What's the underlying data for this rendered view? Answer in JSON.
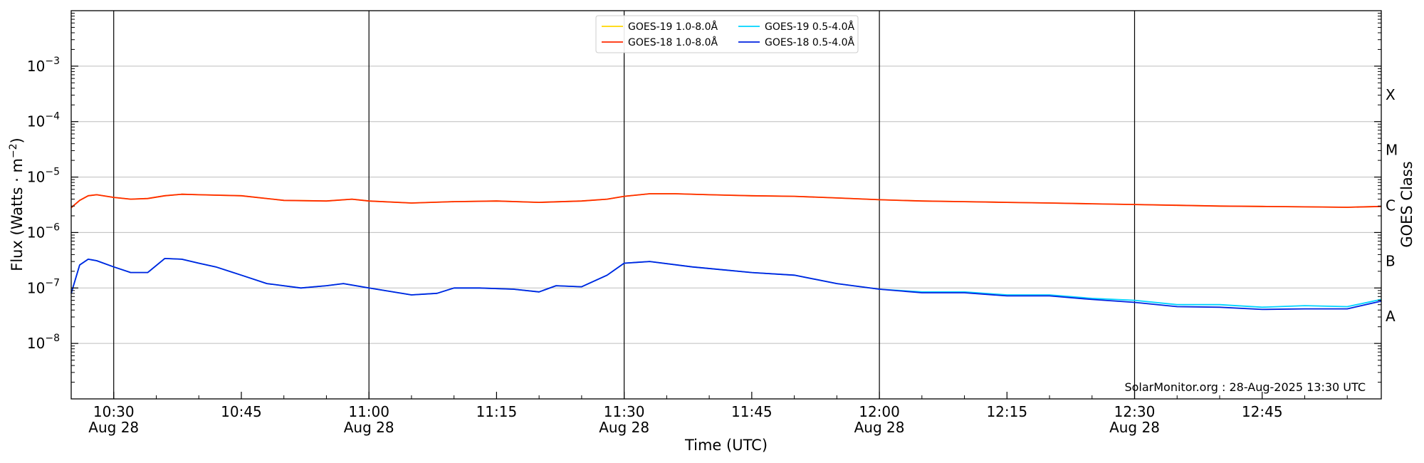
{
  "chart_data": {
    "type": "line",
    "title": "",
    "xlabel": "Time (UTC)",
    "ylabel": "Flux (Watts · m",
    "ylabel_sup": "−2",
    "ylabel_close": ")",
    "y2label": "GOES Class",
    "yscale": "log",
    "ylim": [
      1e-09,
      0.01
    ],
    "xlim": [
      "10:25:00",
      "12:59:00"
    ],
    "x_ticks": [
      {
        "time": "10:30",
        "line1": "10:30",
        "line2": "Aug 28"
      },
      {
        "time": "10:45",
        "line1": "10:45",
        "line2": ""
      },
      {
        "time": "11:00",
        "line1": "11:00",
        "line2": "Aug 28"
      },
      {
        "time": "11:15",
        "line1": "11:15",
        "line2": ""
      },
      {
        "time": "11:30",
        "line1": "11:30",
        "line2": "Aug 28"
      },
      {
        "time": "11:45",
        "line1": "11:45",
        "line2": ""
      },
      {
        "time": "12:00",
        "line1": "12:00",
        "line2": "Aug 28"
      },
      {
        "time": "12:15",
        "line1": "12:15",
        "line2": ""
      },
      {
        "time": "12:30",
        "line1": "12:30",
        "line2": "Aug 28"
      },
      {
        "time": "12:45",
        "line1": "12:45",
        "line2": ""
      }
    ],
    "y_ticks": [
      {
        "value": 1e-08,
        "base": "10",
        "exp": "−8"
      },
      {
        "value": 1e-07,
        "base": "10",
        "exp": "−7"
      },
      {
        "value": 1e-06,
        "base": "10",
        "exp": "−6"
      },
      {
        "value": 1e-05,
        "base": "10",
        "exp": "−5"
      },
      {
        "value": 0.0001,
        "base": "10",
        "exp": "−4"
      },
      {
        "value": 0.001,
        "base": "10",
        "exp": "−3"
      }
    ],
    "goes_classes": [
      {
        "label": "A",
        "value": 3.16e-08
      },
      {
        "label": "B",
        "value": 3.16e-07
      },
      {
        "label": "C",
        "value": 3.16e-06
      },
      {
        "label": "M",
        "value": 3.16e-05
      },
      {
        "label": "X",
        "value": 0.000316
      }
    ],
    "hgrid": [
      1e-08,
      1e-07,
      1e-06,
      1e-05,
      0.0001,
      0.001
    ],
    "vlines": [
      "10:30",
      "11:00",
      "11:30",
      "12:00",
      "12:30"
    ],
    "grid": true,
    "legend": {
      "placement": "top-center",
      "columns": 2
    },
    "series": [
      {
        "name": "GOES-19 1.0-8.0Å",
        "color": "#ffd700",
        "x": [
          "10:25",
          "10:26",
          "10:27",
          "10:28",
          "10:30",
          "10:32",
          "10:34",
          "10:36",
          "10:38",
          "10:40",
          "10:45",
          "10:50",
          "10:55",
          "10:58",
          "11:00",
          "11:05",
          "11:10",
          "11:15",
          "11:20",
          "11:25",
          "11:28",
          "11:30",
          "11:33",
          "11:36",
          "11:40",
          "11:45",
          "11:50",
          "11:55",
          "12:00",
          "12:05",
          "12:10",
          "12:15",
          "12:20",
          "12:25",
          "12:30",
          "12:35",
          "12:40",
          "12:45",
          "12:50",
          "12:55",
          "12:59"
        ],
        "y": [
          2.8e-06,
          3.8e-06,
          4.6e-06,
          4.8e-06,
          4.3e-06,
          4e-06,
          4.1e-06,
          4.6e-06,
          4.9e-06,
          4.8e-06,
          4.6e-06,
          3.8e-06,
          3.7e-06,
          4e-06,
          3.7e-06,
          3.4e-06,
          3.6e-06,
          3.7e-06,
          3.5e-06,
          3.7e-06,
          4e-06,
          4.5e-06,
          5e-06,
          5e-06,
          4.8e-06,
          4.6e-06,
          4.5e-06,
          4.2e-06,
          3.9e-06,
          3.7e-06,
          3.6e-06,
          3.5e-06,
          3.4e-06,
          3.3e-06,
          3.2e-06,
          3.1e-06,
          3e-06,
          2.95e-06,
          2.9e-06,
          2.85e-06,
          2.95e-06
        ]
      },
      {
        "name": "GOES-19 0.5-4.0Å",
        "color": "#00d4ff",
        "x": [
          "10:25",
          "10:26",
          "10:27",
          "10:28",
          "10:30",
          "10:32",
          "10:34",
          "10:36",
          "10:38",
          "10:40",
          "10:42",
          "10:45",
          "10:48",
          "10:52",
          "10:55",
          "10:57",
          "11:00",
          "11:05",
          "11:08",
          "11:10",
          "11:13",
          "11:17",
          "11:20",
          "11:22",
          "11:25",
          "11:28",
          "11:30",
          "11:33",
          "11:38",
          "11:45",
          "11:50",
          "11:55",
          "12:00",
          "12:05",
          "12:10",
          "12:15",
          "12:20",
          "12:25",
          "12:30",
          "12:35",
          "12:40",
          "12:45",
          "12:50",
          "12:55",
          "12:59"
        ],
        "y": [
          8e-08,
          2.6e-07,
          3.3e-07,
          3.1e-07,
          2.4e-07,
          1.9e-07,
          1.9e-07,
          3.4e-07,
          3.3e-07,
          2.8e-07,
          2.4e-07,
          1.7e-07,
          1.2e-07,
          1e-07,
          1.1e-07,
          1.2e-07,
          1e-07,
          7.5e-08,
          8e-08,
          1e-07,
          1e-07,
          9.5e-08,
          8.5e-08,
          1.1e-07,
          1.05e-07,
          1.7e-07,
          2.8e-07,
          3e-07,
          2.4e-07,
          1.9e-07,
          1.7e-07,
          1.2e-07,
          9.5e-08,
          8.5e-08,
          8.5e-08,
          7.5e-08,
          7.5e-08,
          6.5e-08,
          6e-08,
          5e-08,
          5e-08,
          4.5e-08,
          4.8e-08,
          4.6e-08,
          6.2e-08
        ]
      },
      {
        "name": "GOES-18 1.0-8.0Å",
        "color": "#ff2a00",
        "x": [
          "10:25",
          "10:26",
          "10:27",
          "10:28",
          "10:30",
          "10:32",
          "10:34",
          "10:36",
          "10:38",
          "10:40",
          "10:45",
          "10:50",
          "10:55",
          "10:58",
          "11:00",
          "11:05",
          "11:10",
          "11:15",
          "11:20",
          "11:25",
          "11:28",
          "11:30",
          "11:33",
          "11:36",
          "11:40",
          "11:45",
          "11:50",
          "11:55",
          "12:00",
          "12:05",
          "12:10",
          "12:15",
          "12:20",
          "12:25",
          "12:30",
          "12:35",
          "12:40",
          "12:45",
          "12:50",
          "12:55",
          "12:59"
        ],
        "y": [
          2.8e-06,
          3.8e-06,
          4.6e-06,
          4.8e-06,
          4.3e-06,
          4e-06,
          4.1e-06,
          4.6e-06,
          4.9e-06,
          4.8e-06,
          4.6e-06,
          3.8e-06,
          3.7e-06,
          4e-06,
          3.7e-06,
          3.4e-06,
          3.6e-06,
          3.7e-06,
          3.5e-06,
          3.7e-06,
          4e-06,
          4.5e-06,
          5e-06,
          5e-06,
          4.8e-06,
          4.6e-06,
          4.5e-06,
          4.2e-06,
          3.9e-06,
          3.7e-06,
          3.6e-06,
          3.5e-06,
          3.4e-06,
          3.3e-06,
          3.2e-06,
          3.1e-06,
          3e-06,
          2.95e-06,
          2.9e-06,
          2.85e-06,
          2.95e-06
        ]
      },
      {
        "name": "GOES-18 0.5-4.0Å",
        "color": "#0022e0",
        "x": [
          "10:25",
          "10:26",
          "10:27",
          "10:28",
          "10:30",
          "10:32",
          "10:34",
          "10:36",
          "10:38",
          "10:40",
          "10:42",
          "10:45",
          "10:48",
          "10:52",
          "10:55",
          "10:57",
          "11:00",
          "11:05",
          "11:08",
          "11:10",
          "11:13",
          "11:17",
          "11:20",
          "11:22",
          "11:25",
          "11:28",
          "11:30",
          "11:33",
          "11:38",
          "11:45",
          "11:50",
          "11:55",
          "12:00",
          "12:05",
          "12:10",
          "12:15",
          "12:20",
          "12:25",
          "12:30",
          "12:35",
          "12:40",
          "12:45",
          "12:50",
          "12:55",
          "12:59"
        ],
        "y": [
          8e-08,
          2.6e-07,
          3.3e-07,
          3.1e-07,
          2.4e-07,
          1.9e-07,
          1.9e-07,
          3.4e-07,
          3.3e-07,
          2.8e-07,
          2.4e-07,
          1.7e-07,
          1.2e-07,
          1e-07,
          1.1e-07,
          1.2e-07,
          1e-07,
          7.5e-08,
          8e-08,
          1e-07,
          1e-07,
          9.5e-08,
          8.5e-08,
          1.1e-07,
          1.05e-07,
          1.7e-07,
          2.8e-07,
          3e-07,
          2.4e-07,
          1.9e-07,
          1.7e-07,
          1.2e-07,
          9.5e-08,
          8.2e-08,
          8.2e-08,
          7.2e-08,
          7.2e-08,
          6.2e-08,
          5.5e-08,
          4.6e-08,
          4.5e-08,
          4.1e-08,
          4.2e-08,
          4.2e-08,
          5.8e-08
        ]
      }
    ],
    "annotation": "SolarMonitor.org : 28-Aug-2025 13:30 UTC"
  }
}
